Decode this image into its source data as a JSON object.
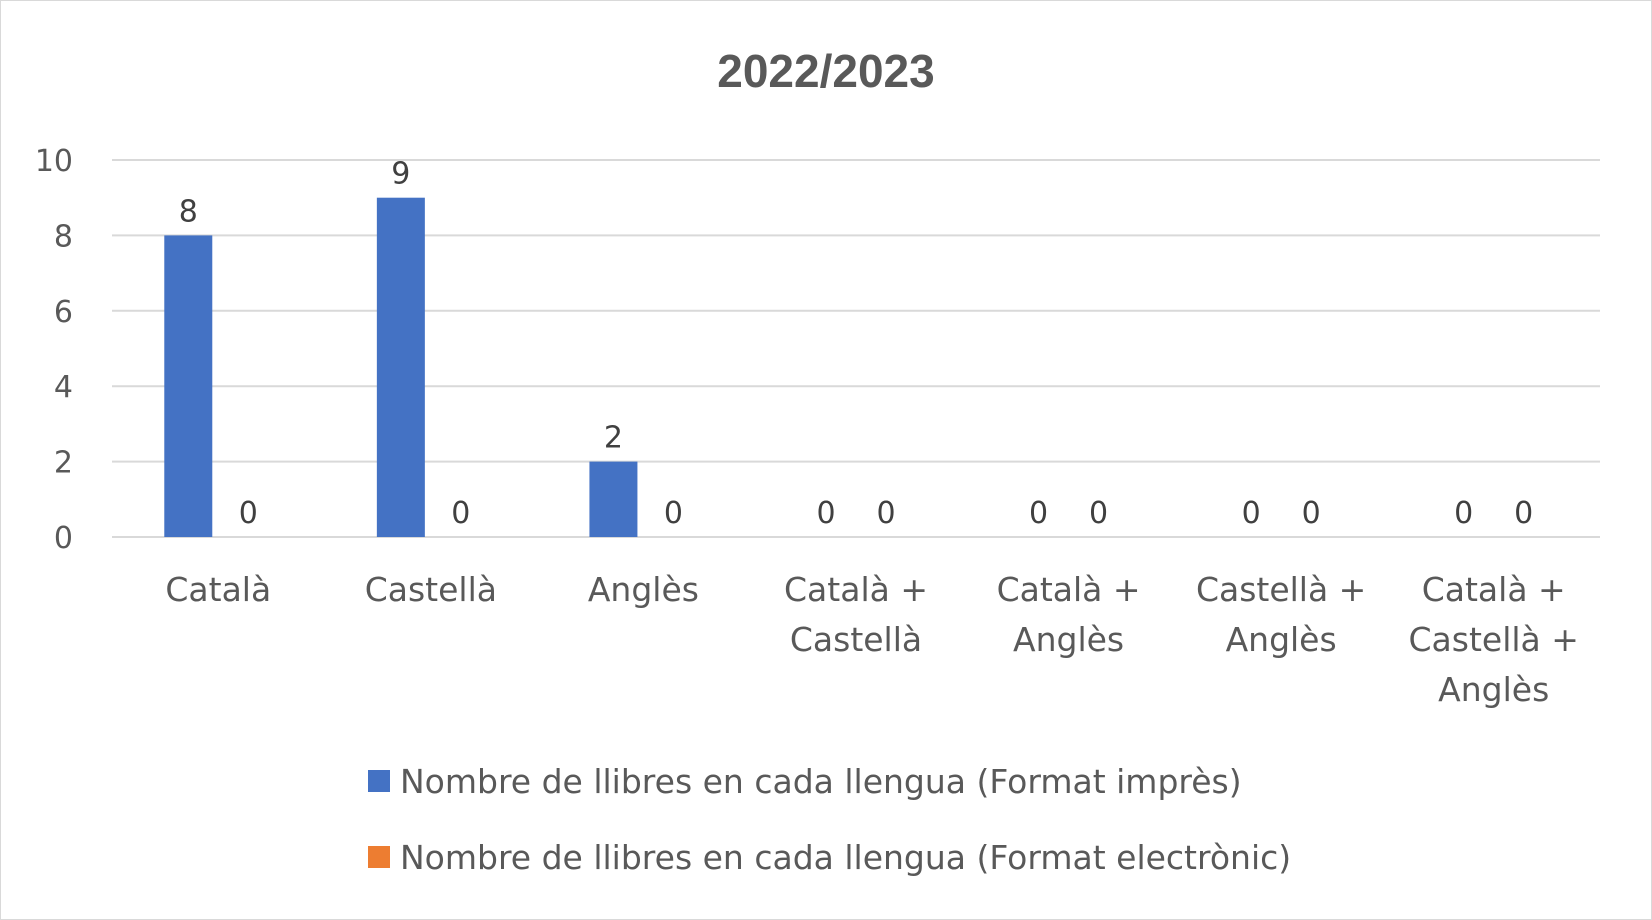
{
  "chart_data": {
    "type": "bar",
    "title": "2022/2023",
    "categories": [
      [
        "Català"
      ],
      [
        "Castellà"
      ],
      [
        "Anglès"
      ],
      [
        "Català +",
        "Castellà"
      ],
      [
        "Català +",
        "Anglès"
      ],
      [
        "Castellà +",
        "Anglès"
      ],
      [
        "Català +",
        "Castellà +",
        "Anglès"
      ]
    ],
    "series": [
      {
        "name": "Nombre de llibres en cada llengua (Format imprès)",
        "color": "#4472C4",
        "values": [
          8,
          9,
          2,
          0,
          0,
          0,
          0
        ]
      },
      {
        "name": "Nombre de llibres en cada llengua (Format electrònic)",
        "color": "#ED7D31",
        "values": [
          0,
          0,
          0,
          0,
          0,
          0,
          0
        ]
      }
    ],
    "yticks": [
      0,
      2,
      4,
      6,
      8,
      10
    ],
    "ylim": [
      0,
      10
    ],
    "grid": true,
    "legend_position": "bottom",
    "data_labels": true
  }
}
